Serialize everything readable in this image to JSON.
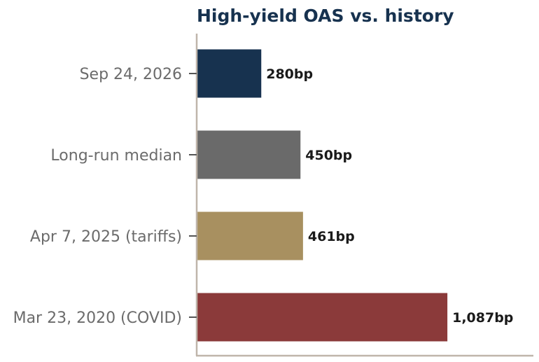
{
  "chart_data": {
    "type": "bar",
    "orientation": "horizontal",
    "title": "High-yield OAS vs. history",
    "categories": [
      "Sep 24, 2026",
      "Long-run median",
      "Apr 7, 2025 (tariffs)",
      "Mar 23, 2020 (COVID)"
    ],
    "values": [
      280,
      450,
      461,
      1087
    ],
    "value_labels": [
      "280bp",
      "450bp",
      "461bp",
      "1,087bp"
    ],
    "colors": [
      "#17324f",
      "#6a6a6a",
      "#a89060",
      "#8b3a3a"
    ],
    "xlabel": "",
    "ylabel": "",
    "xlim": [
      0,
      1460
    ],
    "grid": false,
    "axis_color": "#bfb5aa"
  }
}
